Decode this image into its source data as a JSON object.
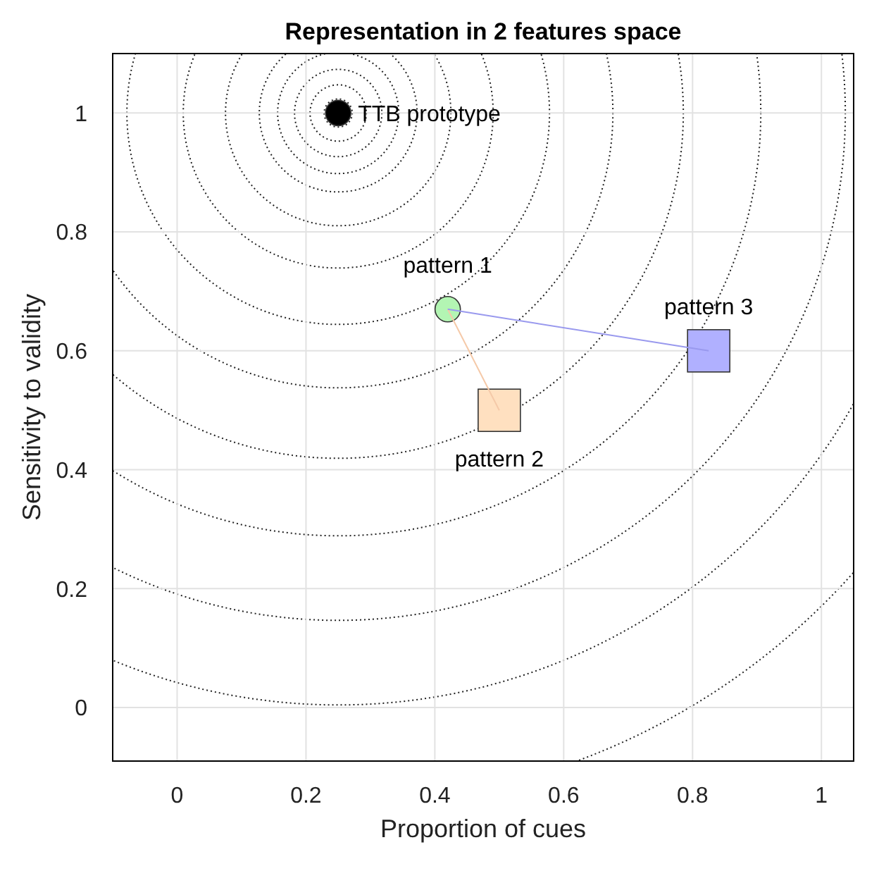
{
  "chart_data": {
    "type": "scatter",
    "title": "Representation in 2 features space",
    "xlabel": "Proportion of cues",
    "ylabel": "Sensitivity to validity",
    "xlim": [
      -0.1,
      1.05
    ],
    "ylim": [
      -0.09,
      1.1
    ],
    "xticks": [
      0,
      0.2,
      0.4,
      0.6,
      0.8,
      1
    ],
    "yticks": [
      0,
      0.2,
      0.4,
      0.6,
      0.8,
      1
    ],
    "grid": true,
    "series": [
      {
        "type": "line",
        "marker": "none",
        "color": "#f5c9a8",
        "x": [
          0.42,
          0.5
        ],
        "values": [
          0.67,
          0.5
        ]
      },
      {
        "type": "line",
        "marker": "none",
        "color": "#9999ee",
        "x": [
          0.42,
          0.825
        ],
        "values": [
          0.67,
          0.6
        ]
      },
      {
        "name": "TTB prototype",
        "marker": "circle",
        "color": "#000000",
        "x": [
          0.25
        ],
        "values": [
          1.0
        ]
      },
      {
        "name": "pattern 1",
        "marker": "circle",
        "color": "#b3f5b3",
        "x": [
          0.42
        ],
        "values": [
          0.67
        ]
      },
      {
        "name": "pattern 2",
        "marker": "square",
        "color": "#ffe0c0",
        "x": [
          0.5
        ],
        "values": [
          0.5
        ]
      },
      {
        "name": "pattern 3",
        "marker": "square",
        "color": "#b0b0ff",
        "x": [
          0.825
        ],
        "values": [
          0.6
        ]
      }
    ]
  }
}
